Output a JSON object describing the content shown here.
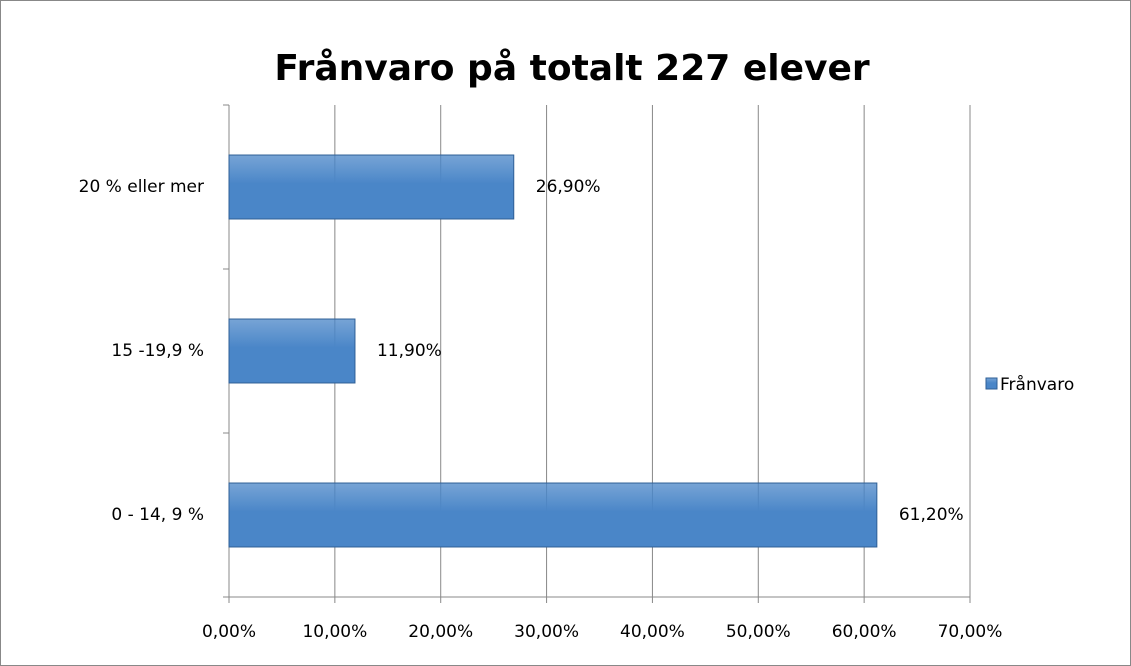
{
  "chart_data": {
    "type": "bar",
    "orientation": "horizontal",
    "title": "Frånvaro på totalt 227 elever",
    "categories": [
      "0 - 14, 9 %",
      "15 -19,9 %",
      "20 % eller mer"
    ],
    "series": [
      {
        "name": "Frånvaro",
        "color": "#4a86c8",
        "values": [
          61.2,
          11.9,
          26.9
        ],
        "value_labels": [
          "61,20%",
          "11,90%",
          "26,90%"
        ]
      }
    ],
    "xlim": [
      0,
      70
    ],
    "xticks": [
      {
        "value": 0,
        "label": "0,00%"
      },
      {
        "value": 10,
        "label": "10,00%"
      },
      {
        "value": 20,
        "label": "20,00%"
      },
      {
        "value": 30,
        "label": "30,00%"
      },
      {
        "value": 40,
        "label": "40,00%"
      },
      {
        "value": 50,
        "label": "50,00%"
      },
      {
        "value": 60,
        "label": "60,00%"
      },
      {
        "value": 70,
        "label": "70,00%"
      }
    ],
    "grid": true,
    "legend": "right"
  }
}
